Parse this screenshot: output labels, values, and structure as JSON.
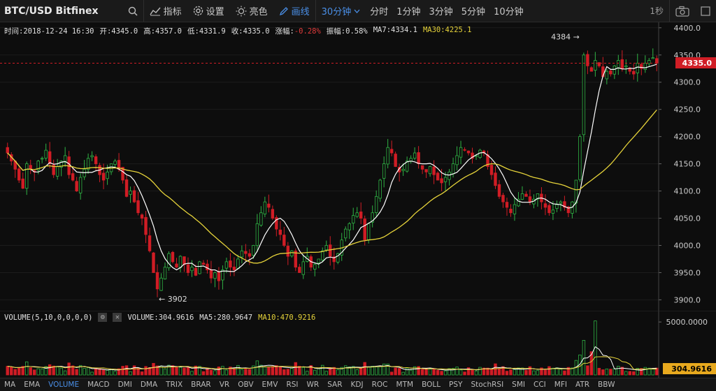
{
  "toolbar": {
    "symbol": "BTC/USD Bitfinex",
    "indicators_label": "指标",
    "settings_label": "设置",
    "theme_label": "亮色",
    "draw_label": "画线",
    "period_selected": "30分钟",
    "period_options": [
      "分时",
      "1分钟",
      "3分钟",
      "5分钟",
      "10分钟"
    ],
    "refresh_label": "1秒"
  },
  "info": {
    "time_label": "时间:2018-12-24 16:30",
    "open_label": "开:4345.0",
    "high_label": "高:4357.0",
    "low_label": "低:4331.9",
    "close_label": "收:4335.0",
    "change_label": "涨幅:",
    "change_value": "-0.28%",
    "amplitude_label": "振幅:0.58%",
    "ma7_label": "MA7:4334.1",
    "ma30_label": "MA30:4225.1"
  },
  "volume_info": {
    "title": "VOLUME(5,10,0,0,0,0)",
    "volume_label": "VOLUME:304.9616",
    "ma5_label": "MA5:280.9647",
    "ma10_label": "MA10:470.9216"
  },
  "colors": {
    "up": "#2fb344",
    "down": "#d01d25",
    "ma7": "#ffffff",
    "ma30": "#e6d33a",
    "accent": "#4a8fe7"
  },
  "indicator_tabs": [
    "MA",
    "EMA",
    "VOLUME",
    "MACD",
    "DMI",
    "DMA",
    "TRIX",
    "BRAR",
    "VR",
    "OBV",
    "EMV",
    "RSI",
    "WR",
    "SAR",
    "KDJ",
    "ROC",
    "MTM",
    "BOLL",
    "PSY",
    "StochRSI",
    "SMI",
    "CCI",
    "MFI",
    "ATR",
    "BBW"
  ],
  "indicator_active": "VOLUME",
  "chart_data": {
    "type": "candlestick",
    "ylim": [
      3880,
      4410
    ],
    "yticks": [
      "4400.0",
      "4350.0",
      "4300.0",
      "4250.0",
      "4200.0",
      "4150.0",
      "4100.0",
      "4050.0",
      "4000.0",
      "3950.0",
      "3900.0"
    ],
    "ytick_values": [
      4400,
      4350,
      4300,
      4250,
      4200,
      4150,
      4100,
      4050,
      4000,
      3950,
      3900
    ],
    "last_price": "4335.0",
    "last_price_value": 4335,
    "high_marker": "4384",
    "high_marker_value": 4384,
    "low_marker": "3902",
    "low_marker_value": 3902,
    "close": [
      4170,
      4155,
      4140,
      4120,
      4105,
      4150,
      4140,
      4135,
      4155,
      4160,
      4175,
      4150,
      4130,
      4145,
      4155,
      4165,
      4130,
      4120,
      4100,
      4125,
      4140,
      4160,
      4165,
      4150,
      4130,
      4120,
      4135,
      4150,
      4155,
      4140,
      4120,
      4090,
      4100,
      4080,
      4060,
      4050,
      4020,
      3990,
      3950,
      3920,
      3940,
      3960,
      3985,
      3970,
      3960,
      3980,
      3965,
      3950,
      3960,
      3945,
      3970,
      3965,
      3955,
      3940,
      3950,
      3935,
      3955,
      3970,
      3960,
      3955,
      3975,
      3990,
      3985,
      3980,
      4000,
      4040,
      4060,
      4080,
      4070,
      4050,
      4030,
      4020,
      4000,
      3980,
      3990,
      3960,
      3950,
      3970,
      3980,
      3960,
      3965,
      3975,
      3990,
      4000,
      3980,
      3970,
      3985,
      4010,
      4030,
      4040,
      4055,
      4060,
      4050,
      4010,
      4040,
      4060,
      4090,
      4120,
      4150,
      4180,
      4170,
      4145,
      4135,
      4140,
      4155,
      4160,
      4170,
      4150,
      4140,
      4135,
      4145,
      4130,
      4120,
      4115,
      4125,
      4135,
      4150,
      4165,
      4180,
      4175,
      4170,
      4160,
      4165,
      4175,
      4170,
      4145,
      4130,
      4110,
      4090,
      4080,
      4070,
      4060,
      4075,
      4085,
      4095,
      4090,
      4080,
      4085,
      4095,
      4080,
      4070,
      4060,
      4065,
      4075,
      4080,
      4070,
      4060,
      4080,
      4120,
      4200,
      4350,
      4330,
      4320,
      4340,
      4330,
      4310,
      4320,
      4315,
      4330,
      4340,
      4325,
      4330,
      4320,
      4315,
      4335,
      4325,
      4335,
      4340,
      4345,
      4335
    ],
    "volume_yticks": [
      "5000.0000"
    ],
    "volume_ytick_values": [
      5000
    ],
    "volume_last": "304.9616",
    "volume_last_value": 304.9616
  }
}
